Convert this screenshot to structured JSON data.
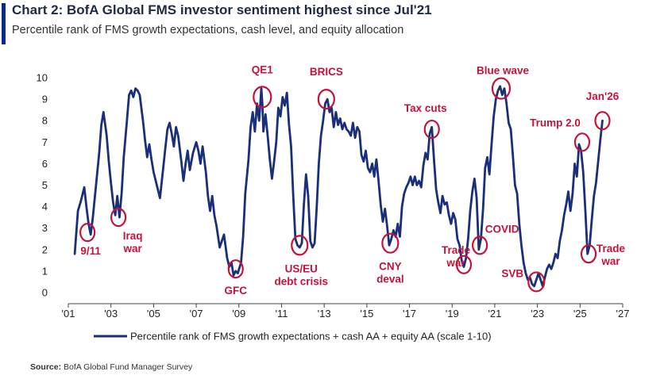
{
  "header": {
    "title": "Chart 2: BofA Global FMS investor sentiment highest since Jul'21",
    "subtitle": "Percentile rank of FMS growth expectations, cash level, and equity allocation",
    "accent_color": "#0a2a8a"
  },
  "footer": {
    "source_label": "Source:",
    "source_text": "BofA Global Fund Manager Survey"
  },
  "chart_data": {
    "type": "line",
    "title": "Chart 2: BofA Global FMS investor sentiment highest since Jul'21",
    "subtitle": "Percentile rank of FMS growth expectations, cash level, and equity allocation",
    "xlabel": "",
    "ylabel": "",
    "xlim": [
      2001,
      2027
    ],
    "ylim": [
      0,
      10
    ],
    "x_ticks": [
      "'01",
      "'03",
      "'05",
      "'07",
      "'09",
      "'11",
      "'13",
      "'15",
      "'17",
      "'19",
      "'21",
      "'23",
      "'25",
      "'27"
    ],
    "y_ticks": [
      "0",
      "1",
      "2",
      "3",
      "4",
      "5",
      "6",
      "7",
      "8",
      "9",
      "10"
    ],
    "grid": false,
    "legend_position": "bottom",
    "line_color": "#1a2f7a",
    "annotation_color": "#c0143c",
    "series": [
      {
        "name": "Percentile rank of FMS growth expectations + cash AA + equity AA (scale 1-10)",
        "points": [
          [
            2001.3,
            1.8
          ],
          [
            2001.45,
            3.8
          ],
          [
            2001.6,
            4.3
          ],
          [
            2001.75,
            4.9
          ],
          [
            2001.85,
            4.0
          ],
          [
            2001.95,
            3.2
          ],
          [
            2002.05,
            2.7
          ],
          [
            2002.15,
            3.5
          ],
          [
            2002.3,
            5.0
          ],
          [
            2002.45,
            6.5
          ],
          [
            2002.55,
            7.8
          ],
          [
            2002.65,
            8.4
          ],
          [
            2002.8,
            7.3
          ],
          [
            2002.9,
            6.1
          ],
          [
            2003.0,
            5.1
          ],
          [
            2003.1,
            4.2
          ],
          [
            2003.2,
            3.6
          ],
          [
            2003.3,
            4.5
          ],
          [
            2003.4,
            3.5
          ],
          [
            2003.5,
            4.6
          ],
          [
            2003.6,
            6.3
          ],
          [
            2003.75,
            8.0
          ],
          [
            2003.85,
            9.2
          ],
          [
            2003.95,
            9.4
          ],
          [
            2004.05,
            9.1
          ],
          [
            2004.15,
            9.5
          ],
          [
            2004.25,
            9.4
          ],
          [
            2004.35,
            9.2
          ],
          [
            2004.5,
            8.0
          ],
          [
            2004.6,
            7.1
          ],
          [
            2004.7,
            6.3
          ],
          [
            2004.8,
            6.9
          ],
          [
            2004.9,
            6.2
          ],
          [
            2005.0,
            5.6
          ],
          [
            2005.15,
            5.0
          ],
          [
            2005.3,
            4.4
          ],
          [
            2005.45,
            5.8
          ],
          [
            2005.55,
            6.7
          ],
          [
            2005.65,
            7.6
          ],
          [
            2005.75,
            7.9
          ],
          [
            2005.85,
            7.4
          ],
          [
            2005.95,
            6.8
          ],
          [
            2006.05,
            7.7
          ],
          [
            2006.15,
            7.3
          ],
          [
            2006.3,
            6.1
          ],
          [
            2006.4,
            5.2
          ],
          [
            2006.5,
            6.0
          ],
          [
            2006.6,
            6.6
          ],
          [
            2006.7,
            5.7
          ],
          [
            2006.85,
            6.5
          ],
          [
            2007.0,
            7.0
          ],
          [
            2007.1,
            6.6
          ],
          [
            2007.2,
            6.0
          ],
          [
            2007.3,
            6.8
          ],
          [
            2007.45,
            5.6
          ],
          [
            2007.55,
            4.5
          ],
          [
            2007.65,
            3.8
          ],
          [
            2007.75,
            4.5
          ],
          [
            2007.85,
            3.6
          ],
          [
            2007.95,
            3.1
          ],
          [
            2008.1,
            2.1
          ],
          [
            2008.2,
            2.4
          ],
          [
            2008.3,
            2.7
          ],
          [
            2008.45,
            1.6
          ],
          [
            2008.55,
            1.2
          ],
          [
            2008.65,
            1.4
          ],
          [
            2008.75,
            0.8
          ],
          [
            2008.85,
            1.0
          ],
          [
            2008.95,
            0.9
          ],
          [
            2009.1,
            1.4
          ],
          [
            2009.2,
            2.6
          ],
          [
            2009.3,
            4.6
          ],
          [
            2009.45,
            6.2
          ],
          [
            2009.55,
            7.7
          ],
          [
            2009.65,
            8.4
          ],
          [
            2009.75,
            7.5
          ],
          [
            2009.85,
            8.8
          ],
          [
            2009.95,
            8.0
          ],
          [
            2010.05,
            9.5
          ],
          [
            2010.1,
            8.8
          ],
          [
            2010.15,
            7.5
          ],
          [
            2010.25,
            8.3
          ],
          [
            2010.35,
            7.3
          ],
          [
            2010.45,
            6.2
          ],
          [
            2010.55,
            5.3
          ],
          [
            2010.65,
            6.1
          ],
          [
            2010.75,
            7.0
          ],
          [
            2010.85,
            8.6
          ],
          [
            2010.95,
            8.2
          ],
          [
            2011.05,
            9.1
          ],
          [
            2011.15,
            8.7
          ],
          [
            2011.25,
            9.3
          ],
          [
            2011.35,
            7.8
          ],
          [
            2011.45,
            6.8
          ],
          [
            2011.55,
            4.5
          ],
          [
            2011.65,
            2.5
          ],
          [
            2011.75,
            2.2
          ],
          [
            2011.85,
            2.1
          ],
          [
            2011.95,
            2.3
          ],
          [
            2012.05,
            4.1
          ],
          [
            2012.15,
            5.5
          ],
          [
            2012.25,
            4.5
          ],
          [
            2012.35,
            2.4
          ],
          [
            2012.45,
            2.1
          ],
          [
            2012.55,
            2.3
          ],
          [
            2012.65,
            4.0
          ],
          [
            2012.75,
            6.0
          ],
          [
            2012.85,
            7.3
          ],
          [
            2012.95,
            8.0
          ],
          [
            2013.05,
            8.8
          ],
          [
            2013.15,
            9.0
          ],
          [
            2013.25,
            8.4
          ],
          [
            2013.35,
            8.6
          ],
          [
            2013.45,
            7.7
          ],
          [
            2013.55,
            8.4
          ],
          [
            2013.65,
            7.8
          ],
          [
            2013.75,
            8.1
          ],
          [
            2013.85,
            7.6
          ],
          [
            2013.95,
            7.9
          ],
          [
            2014.05,
            7.6
          ],
          [
            2014.15,
            7.5
          ],
          [
            2014.25,
            7.3
          ],
          [
            2014.35,
            7.9
          ],
          [
            2014.45,
            7.2
          ],
          [
            2014.55,
            7.7
          ],
          [
            2014.65,
            7.5
          ],
          [
            2014.75,
            6.4
          ],
          [
            2014.85,
            6.1
          ],
          [
            2014.95,
            6.6
          ],
          [
            2015.05,
            5.8
          ],
          [
            2015.15,
            5.6
          ],
          [
            2015.25,
            6.0
          ],
          [
            2015.35,
            5.4
          ],
          [
            2015.45,
            6.2
          ],
          [
            2015.55,
            5.2
          ],
          [
            2015.65,
            4.1
          ],
          [
            2015.75,
            3.3
          ],
          [
            2015.85,
            3.9
          ],
          [
            2015.95,
            3.1
          ],
          [
            2016.05,
            2.2
          ],
          [
            2016.15,
            2.5
          ],
          [
            2016.25,
            2.9
          ],
          [
            2016.35,
            2.6
          ],
          [
            2016.45,
            3.2
          ],
          [
            2016.55,
            2.6
          ],
          [
            2016.65,
            4.0
          ],
          [
            2016.75,
            4.6
          ],
          [
            2016.85,
            4.9
          ],
          [
            2016.95,
            5.1
          ],
          [
            2017.05,
            5.4
          ],
          [
            2017.15,
            5.0
          ],
          [
            2017.25,
            5.4
          ],
          [
            2017.35,
            5.0
          ],
          [
            2017.45,
            5.2
          ],
          [
            2017.55,
            4.9
          ],
          [
            2017.65,
            5.9
          ],
          [
            2017.75,
            6.5
          ],
          [
            2017.85,
            6.2
          ],
          [
            2017.95,
            7.4
          ],
          [
            2018.05,
            7.7
          ],
          [
            2018.15,
            6.2
          ],
          [
            2018.25,
            4.8
          ],
          [
            2018.35,
            4.2
          ],
          [
            2018.45,
            3.7
          ],
          [
            2018.55,
            4.5
          ],
          [
            2018.65,
            4.1
          ],
          [
            2018.75,
            4.2
          ],
          [
            2018.85,
            3.6
          ],
          [
            2018.95,
            3.2
          ],
          [
            2019.05,
            3.7
          ],
          [
            2019.15,
            3.4
          ],
          [
            2019.25,
            2.5
          ],
          [
            2019.35,
            2.2
          ],
          [
            2019.45,
            1.5
          ],
          [
            2019.55,
            1.2
          ],
          [
            2019.65,
            1.6
          ],
          [
            2019.75,
            2.5
          ],
          [
            2019.85,
            3.8
          ],
          [
            2019.95,
            4.7
          ],
          [
            2020.05,
            5.3
          ],
          [
            2020.15,
            4.4
          ],
          [
            2020.25,
            2.0
          ],
          [
            2020.35,
            2.5
          ],
          [
            2020.45,
            3.9
          ],
          [
            2020.55,
            5.8
          ],
          [
            2020.65,
            6.3
          ],
          [
            2020.75,
            5.5
          ],
          [
            2020.85,
            6.9
          ],
          [
            2020.95,
            8.2
          ],
          [
            2021.05,
            9.0
          ],
          [
            2021.15,
            9.4
          ],
          [
            2021.25,
            9.6
          ],
          [
            2021.35,
            9.2
          ],
          [
            2021.45,
            9.5
          ],
          [
            2021.55,
            8.8
          ],
          [
            2021.65,
            7.9
          ],
          [
            2021.75,
            7.6
          ],
          [
            2021.85,
            6.4
          ],
          [
            2021.95,
            5.0
          ],
          [
            2022.05,
            4.6
          ],
          [
            2022.15,
            3.2
          ],
          [
            2022.25,
            2.2
          ],
          [
            2022.35,
            1.4
          ],
          [
            2022.45,
            0.9
          ],
          [
            2022.55,
            0.6
          ],
          [
            2022.65,
            0.7
          ],
          [
            2022.75,
            0.4
          ],
          [
            2022.85,
            0.3
          ],
          [
            2022.95,
            0.6
          ],
          [
            2023.05,
            0.9
          ],
          [
            2023.15,
            0.6
          ],
          [
            2023.25,
            0.3
          ],
          [
            2023.35,
            0.7
          ],
          [
            2023.45,
            1.1
          ],
          [
            2023.55,
            1.3
          ],
          [
            2023.65,
            1.1
          ],
          [
            2023.75,
            1.4
          ],
          [
            2023.85,
            1.8
          ],
          [
            2023.95,
            1.6
          ],
          [
            2024.05,
            2.4
          ],
          [
            2024.15,
            2.9
          ],
          [
            2024.25,
            3.6
          ],
          [
            2024.35,
            4.1
          ],
          [
            2024.45,
            4.7
          ],
          [
            2024.55,
            3.8
          ],
          [
            2024.65,
            4.6
          ],
          [
            2024.75,
            6.0
          ],
          [
            2024.85,
            5.4
          ],
          [
            2024.95,
            6.9
          ],
          [
            2025.05,
            6.6
          ],
          [
            2025.15,
            5.6
          ],
          [
            2025.25,
            3.8
          ],
          [
            2025.35,
            1.8
          ],
          [
            2025.45,
            2.2
          ],
          [
            2025.55,
            3.4
          ],
          [
            2025.65,
            4.5
          ],
          [
            2025.75,
            5.1
          ],
          [
            2025.85,
            6.1
          ],
          [
            2025.95,
            7.1
          ],
          [
            2026.05,
            8.0
          ]
        ]
      }
    ],
    "annotations": [
      {
        "label": [
          "9/11"
        ],
        "x": 2001.9,
        "y": 2.8
      },
      {
        "label": [
          "Iraq",
          "war"
        ],
        "x": 2003.35,
        "y": 3.5
      },
      {
        "label": [
          "GFC"
        ],
        "x": 2008.85,
        "y": 1.1
      },
      {
        "label": [
          "QE1"
        ],
        "x": 2010.1,
        "y": 9.1
      },
      {
        "label": [
          "US/EU",
          "debt crisis"
        ],
        "x": 2011.85,
        "y": 2.2
      },
      {
        "label": [
          "BRICS"
        ],
        "x": 2013.1,
        "y": 9.0
      },
      {
        "label": [
          "CNY",
          "deval"
        ],
        "x": 2016.1,
        "y": 2.3
      },
      {
        "label": [
          "Tax cuts"
        ],
        "x": 2018.05,
        "y": 7.6
      },
      {
        "label": [
          "Trade",
          "war"
        ],
        "x": 2019.55,
        "y": 1.3
      },
      {
        "label": [
          "COVID"
        ],
        "x": 2020.3,
        "y": 2.2
      },
      {
        "label": [
          "Blue wave"
        ],
        "x": 2021.3,
        "y": 9.5
      },
      {
        "label": [
          "SVB"
        ],
        "x": 2022.95,
        "y": 0.5
      },
      {
        "label": [
          "Trump 2.0"
        ],
        "x": 2025.1,
        "y": 7.0
      },
      {
        "label": [
          "Trade",
          "war"
        ],
        "x": 2025.4,
        "y": 1.8
      },
      {
        "label": [
          "Jan'26"
        ],
        "x": 2026.05,
        "y": 8.0
      }
    ]
  }
}
